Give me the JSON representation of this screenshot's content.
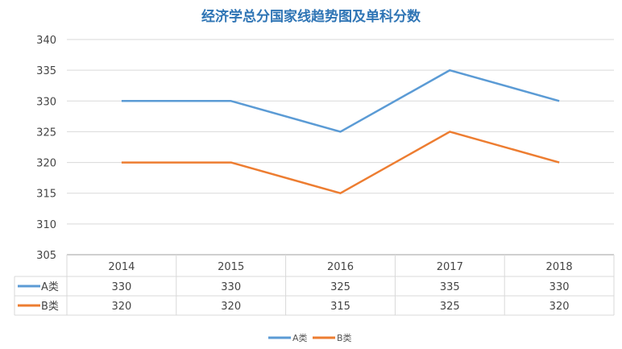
{
  "chart_data": {
    "type": "line",
    "title": "经济学总分国家线趋势图及单科分数",
    "categories": [
      "2014",
      "2015",
      "2016",
      "2017",
      "2018"
    ],
    "series": [
      {
        "name": "A类",
        "values": [
          330,
          330,
          325,
          335,
          330
        ],
        "color": "#5b9bd5"
      },
      {
        "name": "B类",
        "values": [
          320,
          320,
          315,
          325,
          320
        ],
        "color": "#ed7d31"
      }
    ],
    "yticks": [
      "305",
      "310",
      "315",
      "320",
      "325",
      "330",
      "335",
      "340"
    ],
    "ylim": [
      305,
      340
    ],
    "grid": true,
    "legend": "bottom-center",
    "data_table": true
  }
}
